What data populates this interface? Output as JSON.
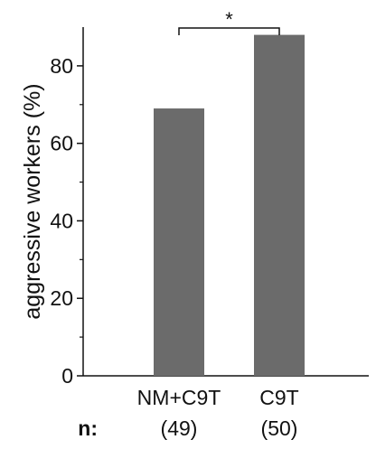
{
  "chart_data": {
    "type": "bar",
    "categories": [
      "NM+C9T",
      "C9T"
    ],
    "values": [
      69,
      88
    ],
    "sample_sizes": [
      "(49)",
      "(50)"
    ],
    "sample_size_prefix": "n:",
    "ylabel": "aggressive workers (%)",
    "yticks": [
      "0",
      "20",
      "40",
      "60",
      "80"
    ],
    "ylim": [
      0,
      90
    ],
    "significance": {
      "between": [
        "NM+C9T",
        "C9T"
      ],
      "label": "*"
    },
    "bar_color": "#6b6b6b",
    "grid": false
  }
}
